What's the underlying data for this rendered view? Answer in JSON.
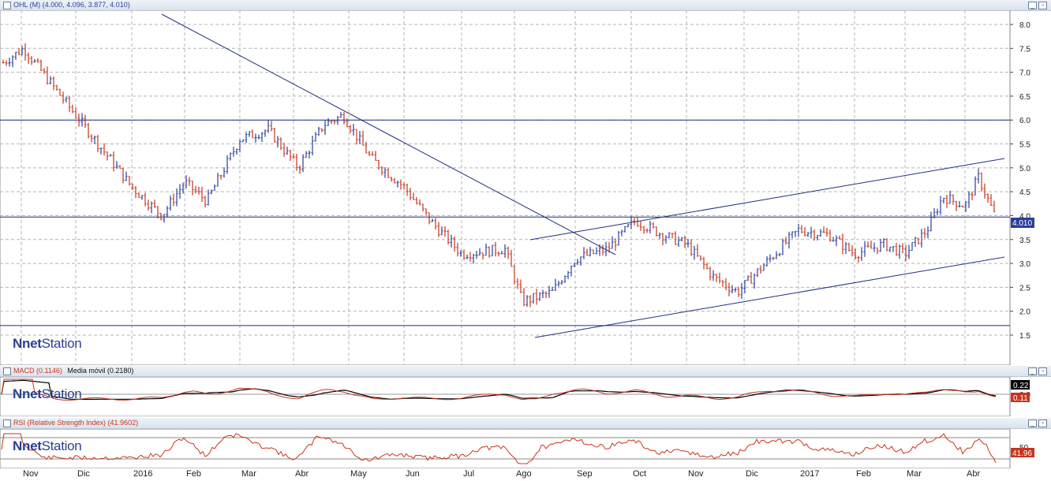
{
  "main_panel": {
    "title_prefix": "OHL (M) ",
    "title_values": "(4.000, 4.096, 3.877, 4.010)",
    "price_tag": "4.010",
    "price_ticks": [
      "1.5",
      "2.0",
      "2.5",
      "3.0",
      "3.5",
      "4.0",
      "4.5",
      "5.0",
      "5.5",
      "6.0",
      "6.5",
      "7.0",
      "7.5",
      "8.0"
    ]
  },
  "macd_panel": {
    "title_macd": "MACD (0.1146)",
    "title_signal": "Media móvil (0.2180)",
    "tick_zero": "0.0",
    "tag_signal": "0.22",
    "tag_macd": "0.11"
  },
  "rsi_panel": {
    "title": "RSI (Relative Strength Index) (41.9602)",
    "tick_50": "50",
    "tag_value": "41.96"
  },
  "logo": {
    "net": "net",
    "station": "Station"
  },
  "months": [
    "Nov",
    "Dic",
    "2016",
    "Feb",
    "Mar",
    "Abr",
    "May",
    "Jun",
    "Jul",
    "Ago",
    "Sep",
    "Oct",
    "Nov",
    "Dic",
    "2017",
    "Feb",
    "Mar",
    "Abr"
  ],
  "colors": {
    "up": "#2a3f9c",
    "down": "#c8341c",
    "trend": "#1f2f80",
    "grid": "#b4b4b4"
  },
  "chart_data": {
    "type": "line",
    "title": "OHL (M) (4.000, 4.096, 3.877, 4.010)",
    "x": [
      "Nov",
      "Dic",
      "2016",
      "Feb",
      "Mar",
      "Abr",
      "May",
      "Jun",
      "Jul",
      "Ago",
      "Sep",
      "Oct",
      "Nov",
      "Dic",
      "2017",
      "Feb",
      "Mar",
      "Abr"
    ],
    "ylim": [
      1.5,
      8.2
    ],
    "series": [
      {
        "name": "OHL",
        "values": [
          7.2,
          6.1,
          4.6,
          4.4,
          5.4,
          5.6,
          5.9,
          4.6,
          3.5,
          2.2,
          3.1,
          3.8,
          3.2,
          2.7,
          3.5,
          3.2,
          3.4,
          4.01
        ]
      }
    ],
    "horizontal_levels": [
      6.0,
      3.97,
      1.7
    ],
    "macd_last": 0.11,
    "macd_signal_last": 0.22,
    "rsi_last": 41.96,
    "grid": true
  }
}
